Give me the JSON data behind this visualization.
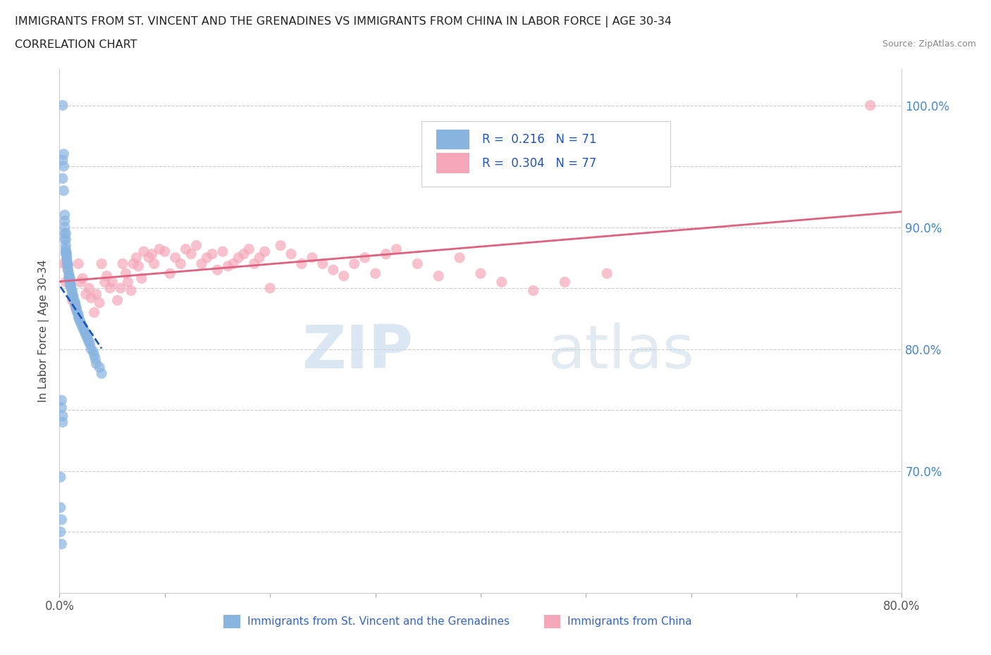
{
  "title_line1": "IMMIGRANTS FROM ST. VINCENT AND THE GRENADINES VS IMMIGRANTS FROM CHINA IN LABOR FORCE | AGE 30-34",
  "title_line2": "CORRELATION CHART",
  "source_text": "Source: ZipAtlas.com",
  "ylabel": "In Labor Force | Age 30-34",
  "x_min": 0.0,
  "x_max": 0.8,
  "y_min": 0.6,
  "y_max": 1.03,
  "legend_label1": "Immigrants from St. Vincent and the Grenadines",
  "legend_label2": "Immigrants from China",
  "R1": 0.216,
  "N1": 71,
  "R2": 0.304,
  "N2": 77,
  "color1": "#88b4e0",
  "color2": "#f4a7b9",
  "trendline1_color": "#2255bb",
  "trendline2_color": "#e06080",
  "watermark_zip": "ZIP",
  "watermark_atlas": "atlas",
  "blue_scatter_x": [
    0.001,
    0.002,
    0.002,
    0.003,
    0.003,
    0.003,
    0.004,
    0.004,
    0.004,
    0.005,
    0.005,
    0.005,
    0.005,
    0.005,
    0.006,
    0.006,
    0.006,
    0.006,
    0.006,
    0.006,
    0.007,
    0.007,
    0.007,
    0.007,
    0.008,
    0.008,
    0.008,
    0.009,
    0.009,
    0.009,
    0.01,
    0.01,
    0.01,
    0.011,
    0.011,
    0.012,
    0.012,
    0.013,
    0.013,
    0.014,
    0.015,
    0.015,
    0.016,
    0.016,
    0.017,
    0.018,
    0.018,
    0.019,
    0.02,
    0.021,
    0.022,
    0.023,
    0.024,
    0.025,
    0.026,
    0.027,
    0.028,
    0.029,
    0.03,
    0.032,
    0.033,
    0.034,
    0.035,
    0.038,
    0.04,
    0.002,
    0.002,
    0.003,
    0.003,
    0.001,
    0.001
  ],
  "blue_scatter_y": [
    0.65,
    0.64,
    0.66,
    1.0,
    0.955,
    0.94,
    0.96,
    0.95,
    0.93,
    0.91,
    0.905,
    0.9,
    0.895,
    0.89,
    0.895,
    0.89,
    0.885,
    0.882,
    0.88,
    0.878,
    0.878,
    0.875,
    0.873,
    0.87,
    0.87,
    0.868,
    0.865,
    0.862,
    0.86,
    0.858,
    0.858,
    0.855,
    0.853,
    0.852,
    0.85,
    0.848,
    0.846,
    0.844,
    0.842,
    0.84,
    0.838,
    0.836,
    0.834,
    0.832,
    0.83,
    0.828,
    0.826,
    0.824,
    0.822,
    0.82,
    0.818,
    0.816,
    0.814,
    0.812,
    0.81,
    0.808,
    0.806,
    0.804,
    0.8,
    0.798,
    0.795,
    0.792,
    0.788,
    0.785,
    0.78,
    0.758,
    0.752,
    0.745,
    0.74,
    0.695,
    0.67
  ],
  "pink_scatter_x": [
    0.004,
    0.006,
    0.008,
    0.01,
    0.012,
    0.015,
    0.018,
    0.02,
    0.022,
    0.025,
    0.028,
    0.03,
    0.033,
    0.035,
    0.038,
    0.04,
    0.043,
    0.045,
    0.048,
    0.05,
    0.055,
    0.058,
    0.06,
    0.063,
    0.065,
    0.068,
    0.07,
    0.073,
    0.075,
    0.078,
    0.08,
    0.085,
    0.088,
    0.09,
    0.095,
    0.1,
    0.105,
    0.11,
    0.115,
    0.12,
    0.125,
    0.13,
    0.135,
    0.14,
    0.145,
    0.15,
    0.155,
    0.16,
    0.165,
    0.17,
    0.175,
    0.18,
    0.185,
    0.19,
    0.195,
    0.2,
    0.21,
    0.22,
    0.23,
    0.24,
    0.25,
    0.26,
    0.27,
    0.28,
    0.29,
    0.3,
    0.31,
    0.32,
    0.34,
    0.36,
    0.38,
    0.4,
    0.42,
    0.45,
    0.48,
    0.52,
    0.77
  ],
  "pink_scatter_y": [
    0.87,
    0.855,
    0.865,
    0.858,
    0.84,
    0.835,
    0.87,
    0.855,
    0.858,
    0.845,
    0.85,
    0.842,
    0.83,
    0.845,
    0.838,
    0.87,
    0.855,
    0.86,
    0.85,
    0.855,
    0.84,
    0.85,
    0.87,
    0.862,
    0.855,
    0.848,
    0.87,
    0.875,
    0.868,
    0.858,
    0.88,
    0.875,
    0.878,
    0.87,
    0.882,
    0.88,
    0.862,
    0.875,
    0.87,
    0.882,
    0.878,
    0.885,
    0.87,
    0.875,
    0.878,
    0.865,
    0.88,
    0.868,
    0.87,
    0.875,
    0.878,
    0.882,
    0.87,
    0.875,
    0.88,
    0.85,
    0.885,
    0.878,
    0.87,
    0.875,
    0.87,
    0.865,
    0.86,
    0.87,
    0.875,
    0.862,
    0.878,
    0.882,
    0.87,
    0.86,
    0.875,
    0.862,
    0.855,
    0.848,
    0.855,
    0.862,
    1.0
  ]
}
